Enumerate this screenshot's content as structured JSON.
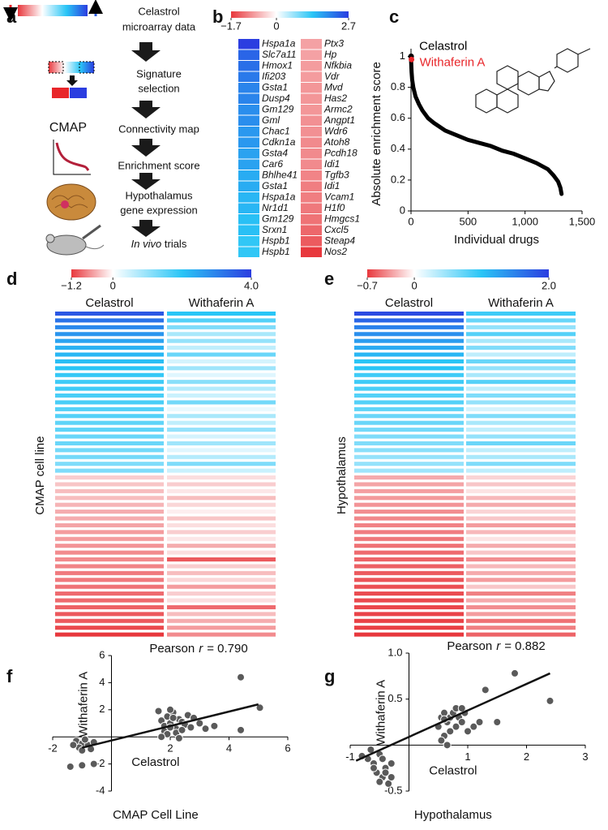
{
  "panel_labels": [
    "a",
    "b",
    "c",
    "d",
    "e",
    "f",
    "g"
  ],
  "workflow": {
    "steps": [
      [
        "Celastrol",
        "microarray data"
      ],
      [
        "Signature",
        "selection"
      ],
      [
        "Connectivity map"
      ],
      [
        "Enrichment score"
      ],
      [
        "Hypothalamus",
        "gene expression"
      ],
      [
        "In vivo",
        "trials"
      ]
    ],
    "icon_label": "CMAP"
  },
  "chart_data": [
    {
      "type": "heatmap",
      "clim": [
        -1.7,
        2.7
      ],
      "cticks": [
        {
          "value": -1.7,
          "label": "−1.7"
        },
        0,
        2.7
      ],
      "colormap": [
        "#e8383d",
        "#ffffff",
        "#29c5f6",
        "#2b3de0"
      ],
      "series": [
        {
          "labels": [
            "Hspa1a",
            "Slc7a11",
            "Hmox1",
            "Ifi203",
            "Gsta1",
            "Dusp4",
            "Gm129",
            "Gml",
            "Chac1",
            "Cdkn1a",
            "Gsta4",
            "Car6",
            "Bhlhe41",
            "Gsta1",
            "Hspa1a",
            "Nr1d1",
            "Gm129",
            "Srxn1",
            "Hspb1",
            "Hspb1"
          ],
          "values": [
            2.7,
            2.3,
            2.2,
            2.1,
            2.0,
            2.0,
            1.9,
            1.9,
            1.8,
            1.8,
            1.7,
            1.7,
            1.6,
            1.6,
            1.5,
            1.5,
            1.4,
            1.4,
            1.3,
            1.3
          ]
        },
        {
          "labels": [
            "Ptx3",
            "Hp",
            "Nfkbia",
            "Vdr",
            "Mvd",
            "Has2",
            "Armc2",
            "Angpt1",
            "Wdr6",
            "Atoh8",
            "Pcdh18",
            "Idi1",
            "Tgfb3",
            "Idi1",
            "Vcam1",
            "H1f0",
            "Hmgcs1",
            "Cxcl5",
            "Steap4",
            "Nos2"
          ],
          "values": [
            -0.8,
            -0.8,
            -0.85,
            -0.85,
            -0.9,
            -0.9,
            -0.9,
            -0.95,
            -0.95,
            -1.0,
            -1.0,
            -1.0,
            -1.05,
            -1.1,
            -1.1,
            -1.15,
            -1.2,
            -1.3,
            -1.4,
            -1.7
          ]
        }
      ]
    },
    {
      "type": "line",
      "xlabel": "Individual drugs",
      "ylabel": "Absolute enrichment score",
      "xlim": [
        0,
        1500
      ],
      "ylim": [
        0,
        1.05
      ],
      "xticks": [
        0,
        500,
        {
          "value": 1000,
          "label": "1,000"
        },
        {
          "value": 1500,
          "label": "1,500"
        }
      ],
      "yticks": [
        0,
        0.2,
        0.4,
        0.6,
        0.8,
        1
      ],
      "series": [
        {
          "color": "#000000",
          "x": [
            1,
            5,
            10,
            20,
            40,
            70,
            100,
            150,
            200,
            300,
            400,
            500,
            600,
            700,
            800,
            900,
            1000,
            1100,
            1200,
            1250,
            1290,
            1310,
            1320
          ],
          "values": [
            0.97,
            0.9,
            0.85,
            0.8,
            0.74,
            0.69,
            0.65,
            0.6,
            0.57,
            0.52,
            0.49,
            0.46,
            0.44,
            0.42,
            0.39,
            0.37,
            0.34,
            0.31,
            0.27,
            0.23,
            0.19,
            0.15,
            0.11
          ]
        },
        {
          "name": "Celastrol",
          "color": "#000000",
          "x": [
            1
          ],
          "values": [
            1.0
          ]
        },
        {
          "name": "Withaferin A",
          "color": "#e8262a",
          "x": [
            4
          ],
          "values": [
            0.98
          ]
        }
      ]
    },
    {
      "type": "heatmap",
      "ylabel": "CMAP cell line",
      "clim": [
        -1.2,
        4.0
      ],
      "cticks": [
        {
          "value": -1.2,
          "label": "−1.2"
        },
        0,
        {
          "value": 4,
          "label": "4.0"
        }
      ],
      "colormap": [
        "#e8383d",
        "#ffffff",
        "#29c5f6",
        "#2b3de0"
      ],
      "series": [
        {
          "name": "Celastrol",
          "values": [
            3.6,
            3.2,
            2.9,
            2.7,
            2.5,
            2.3,
            2.2,
            2.1,
            2.0,
            1.9,
            1.8,
            1.8,
            1.7,
            1.7,
            1.6,
            1.6,
            1.5,
            1.5,
            1.4,
            1.4,
            1.3,
            1.3,
            1.2,
            1.2,
            -0.3,
            -0.35,
            -0.4,
            -0.4,
            -0.45,
            -0.5,
            -0.5,
            -0.55,
            -0.6,
            -0.6,
            -0.65,
            -0.7,
            -0.7,
            -0.75,
            -0.8,
            -0.8,
            -0.85,
            -0.9,
            -0.9,
            -0.95,
            -1.0,
            -1.0,
            -1.1,
            -1.2
          ]
        },
        {
          "name": "Withaferin A",
          "values": [
            2.0,
            1.6,
            1.2,
            0.8,
            1.0,
            0.6,
            1.4,
            0.4,
            0.9,
            0.3,
            1.1,
            0.7,
            0.5,
            1.3,
            0.2,
            0.8,
            0.6,
            1.0,
            0.4,
            0.9,
            0.3,
            0.7,
            1.2,
            0.5,
            -0.2,
            -0.3,
            -0.15,
            -0.4,
            -0.25,
            -0.1,
            -0.35,
            -0.2,
            -0.3,
            -0.15,
            -0.5,
            -0.2,
            -1.0,
            -0.3,
            -0.4,
            -0.25,
            -0.6,
            -0.3,
            -0.2,
            -0.9,
            -0.4,
            -0.5,
            -0.6,
            -0.7
          ]
        }
      ]
    },
    {
      "type": "heatmap",
      "ylabel": "Hypothalamus",
      "clim": [
        -0.7,
        2.0
      ],
      "cticks": [
        {
          "value": -0.7,
          "label": "−0.7"
        },
        0,
        {
          "value": 2,
          "label": "2.0"
        }
      ],
      "colormap": [
        "#e8383d",
        "#ffffff",
        "#29c5f6",
        "#2b3de0"
      ],
      "series": [
        {
          "name": "Celastrol",
          "values": [
            1.9,
            1.7,
            1.5,
            1.4,
            1.3,
            1.2,
            1.1,
            1.0,
            1.0,
            0.9,
            0.9,
            0.85,
            0.8,
            0.8,
            0.75,
            0.7,
            0.7,
            0.65,
            0.6,
            0.6,
            0.55,
            0.5,
            0.5,
            0.45,
            -0.3,
            -0.32,
            -0.34,
            -0.36,
            -0.38,
            -0.4,
            -0.42,
            -0.44,
            -0.46,
            -0.48,
            -0.5,
            -0.52,
            -0.54,
            -0.56,
            -0.58,
            -0.6,
            -0.62,
            -0.63,
            -0.64,
            -0.65,
            -0.66,
            -0.67,
            -0.68,
            -0.7
          ]
        },
        {
          "name": "Withaferin A",
          "values": [
            0.9,
            0.7,
            0.5,
            0.8,
            0.4,
            0.6,
            0.3,
            0.7,
            0.5,
            0.4,
            0.8,
            0.3,
            0.6,
            0.5,
            0.2,
            0.6,
            0.4,
            0.3,
            0.5,
            0.7,
            0.3,
            0.4,
            0.6,
            0.3,
            -0.15,
            -0.2,
            -0.1,
            -0.25,
            -0.3,
            -0.15,
            -0.2,
            -0.35,
            -0.25,
            -0.1,
            -0.3,
            -0.2,
            -0.4,
            -0.25,
            -0.3,
            -0.35,
            -0.2,
            -0.45,
            -0.3,
            -0.4,
            -0.35,
            -0.5,
            -0.45,
            -0.55
          ]
        }
      ]
    },
    {
      "type": "scatter",
      "annotation": {
        "text": "Pearson",
        "symbol": "r",
        "value": "= 0.790"
      },
      "xlabel": "Celastrol",
      "ylabel": "Withaferin A",
      "caption": "CMAP Cell Line",
      "xlim": [
        -2,
        6
      ],
      "ylim": [
        -4,
        6
      ],
      "xticks": [
        -2,
        2,
        4,
        6
      ],
      "yticks": [
        -4,
        -2,
        2,
        4,
        6
      ],
      "color": "#5a5a5a",
      "x": [
        -1.4,
        -1.0,
        -0.6,
        -1.2,
        -1.0,
        -0.8,
        -1.1,
        -0.9,
        -0.7,
        -1.3,
        -0.6,
        -1.0,
        1.7,
        1.8,
        1.9,
        2.0,
        2.1,
        2.2,
        2.3,
        1.8,
        2.4,
        2.5,
        2.0,
        1.6,
        2.6,
        2.2,
        2.7,
        1.9,
        2.8,
        3.0,
        2.1,
        2.4,
        3.2,
        2.0,
        1.7,
        2.3,
        3.5,
        4.4,
        5.05,
        4.4
      ],
      "values": [
        -2.2,
        -2.1,
        -2.0,
        -0.3,
        -0.5,
        -0.6,
        -0.8,
        -0.2,
        -0.9,
        -0.6,
        -0.4,
        -1.0,
        1.2,
        0.8,
        1.5,
        1.0,
        1.8,
        0.6,
        1.3,
        0.4,
        1.1,
        0.9,
        2.0,
        1.9,
        1.6,
        0.3,
        0.7,
        0.2,
        1.4,
        1.0,
        1.4,
        0.5,
        0.6,
        0.7,
        0.0,
        -0.1,
        0.8,
        4.4,
        2.15,
        0.5
      ],
      "fit": {
        "color": "#111111",
        "x": [
          -1.0,
          5.0
        ],
        "values": [
          -0.8,
          2.4
        ]
      }
    },
    {
      "type": "scatter",
      "annotation": {
        "text": "Pearson",
        "symbol": "r",
        "value": "= 0.882"
      },
      "xlabel": "Celastrol",
      "ylabel": "Withaferin A",
      "caption": "Hypothalamus",
      "xlim": [
        -1,
        3
      ],
      "ylim": [
        -0.5,
        1.0
      ],
      "xticks": [
        -1,
        1,
        2,
        3
      ],
      "yticks": [
        -0.5,
        0.5,
        {
          "value": 1,
          "label": "1.0"
        }
      ],
      "color": "#5a5a5a",
      "x": [
        -0.7,
        -0.6,
        -0.5,
        -0.4,
        -0.55,
        -0.45,
        -0.3,
        -0.65,
        -0.5,
        -0.35,
        -0.8,
        -0.4,
        -0.6,
        -0.3,
        -0.45,
        0.5,
        0.55,
        0.6,
        0.6,
        0.65,
        0.7,
        0.7,
        0.75,
        0.8,
        0.8,
        0.85,
        0.9,
        0.95,
        1.0,
        0.55,
        0.65,
        1.1,
        1.2,
        0.9,
        0.6,
        1.8,
        2.4,
        1.3,
        1.5
      ],
      "values": [
        -0.15,
        -0.2,
        -0.1,
        -0.25,
        -0.3,
        -0.35,
        -0.2,
        -0.05,
        -0.4,
        -0.42,
        -0.12,
        -0.3,
        -0.25,
        -0.35,
        -0.15,
        0.2,
        0.3,
        0.35,
        0.1,
        0.25,
        0.3,
        0.15,
        0.35,
        0.4,
        0.2,
        0.3,
        0.25,
        0.35,
        0.15,
        0.05,
        0.0,
        0.2,
        0.25,
        0.4,
        0.28,
        0.78,
        0.48,
        0.6,
        0.25
      ],
      "fit": {
        "color": "#111111",
        "x": [
          -0.9,
          2.4
        ],
        "values": [
          -0.17,
          0.78
        ]
      }
    }
  ]
}
